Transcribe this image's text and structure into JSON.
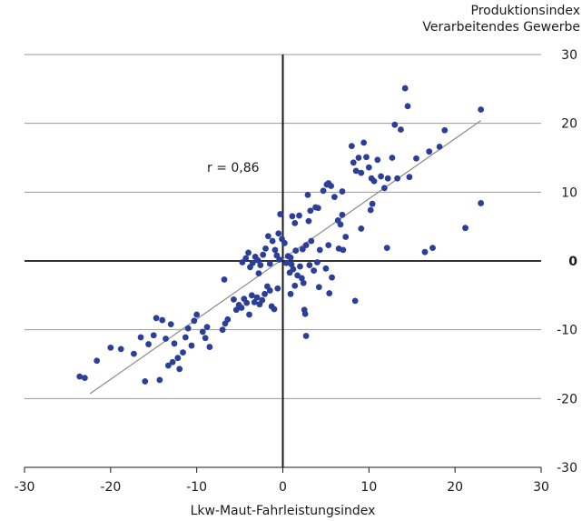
{
  "chart_data": {
    "type": "scatter",
    "title": "",
    "xlabel": "Lkw-Maut-Fahrleistungsindex",
    "ylabel_lines": [
      "Produktionsindex",
      "Verarbeitendes Gewerbe"
    ],
    "xlim": [
      -30,
      30
    ],
    "ylim": [
      -30,
      30
    ],
    "x_ticks": [
      -30,
      -20,
      -10,
      0,
      10,
      20,
      30
    ],
    "y_ticks": [
      -30,
      -20,
      -10,
      0,
      10,
      20,
      30
    ],
    "y_ticks_bold": [
      0
    ],
    "grid": "horizontal",
    "annotation": "r = 0,86",
    "point_color": "#2b3f99",
    "trend_color": "#8c8c8c",
    "trendline": [
      [
        -22.4,
        -19.3
      ],
      [
        23,
        20.4
      ]
    ],
    "series": [
      {
        "points": [
          [
            -23.6,
            -16.8
          ],
          [
            -23.0,
            -17.0
          ],
          [
            -21.6,
            -14.5
          ],
          [
            -20.0,
            -12.6
          ],
          [
            -18.8,
            -12.8
          ],
          [
            -17.3,
            -13.5
          ],
          [
            -16.5,
            -11.1
          ],
          [
            -16.0,
            -17.5
          ],
          [
            -15.6,
            -12.1
          ],
          [
            -15.0,
            -10.8
          ],
          [
            -14.7,
            -8.3
          ],
          [
            -14.3,
            -17.3
          ],
          [
            -14.0,
            -8.6
          ],
          [
            -13.6,
            -11.3
          ],
          [
            -13.3,
            -15.2
          ],
          [
            -13.0,
            -9.2
          ],
          [
            -12.8,
            -14.7
          ],
          [
            -12.6,
            -12.0
          ],
          [
            -12.2,
            -14.1
          ],
          [
            -12.0,
            -15.7
          ],
          [
            -11.6,
            -13.3
          ],
          [
            -11.3,
            -11.1
          ],
          [
            -11.0,
            -9.8
          ],
          [
            -10.6,
            -12.3
          ],
          [
            -10.3,
            -8.7
          ],
          [
            -10.0,
            -7.8
          ],
          [
            -9.3,
            -10.3
          ],
          [
            -9.0,
            -11.2
          ],
          [
            -8.8,
            -9.6
          ],
          [
            -8.5,
            -12.5
          ],
          [
            -7.0,
            -10.0
          ],
          [
            -6.7,
            -9.1
          ],
          [
            -6.4,
            -8.5
          ],
          [
            -6.8,
            -2.7
          ],
          [
            -5.7,
            -5.6
          ],
          [
            -5.4,
            -7.1
          ],
          [
            -5.1,
            -6.4
          ],
          [
            -4.8,
            -6.8
          ],
          [
            -4.5,
            -5.5
          ],
          [
            -4.2,
            -6.1
          ],
          [
            -3.9,
            -7.8
          ],
          [
            -3.6,
            -5.0
          ],
          [
            -3.3,
            -6.0
          ],
          [
            -3.0,
            -5.3
          ],
          [
            -2.7,
            -6.3
          ],
          [
            -2.4,
            -5.7
          ],
          [
            -2.1,
            -4.8
          ],
          [
            -1.8,
            -3.7
          ],
          [
            -1.5,
            -4.3
          ],
          [
            -1.3,
            -6.6
          ],
          [
            -1.0,
            -7.0
          ],
          [
            -0.6,
            -4.0
          ],
          [
            -4.7,
            -0.2
          ],
          [
            -4.3,
            0.4
          ],
          [
            -4.0,
            1.2
          ],
          [
            -3.8,
            -0.9
          ],
          [
            -3.5,
            -0.3
          ],
          [
            -3.2,
            0.6
          ],
          [
            -2.9,
            0.1
          ],
          [
            -2.6,
            -0.6
          ],
          [
            -2.3,
            0.9
          ],
          [
            -2.0,
            1.8
          ],
          [
            -1.7,
            3.6
          ],
          [
            -1.5,
            -0.4
          ],
          [
            -1.2,
            2.9
          ],
          [
            -0.9,
            1.6
          ],
          [
            -0.7,
            0.8
          ],
          [
            -0.5,
            4.0
          ],
          [
            -0.3,
            6.8
          ],
          [
            -0.1,
            3.2
          ],
          [
            0.2,
            2.6
          ],
          [
            0.4,
            -0.3
          ],
          [
            0.6,
            0.7
          ],
          [
            0.8,
            -1.7
          ],
          [
            1.0,
            -0.5
          ],
          [
            1.2,
            -1.2
          ],
          [
            0.9,
            -4.8
          ],
          [
            1.4,
            -3.6
          ],
          [
            1.7,
            -2.1
          ],
          [
            2.0,
            -0.8
          ],
          [
            2.2,
            -2.5
          ],
          [
            2.5,
            -7.1
          ],
          [
            2.7,
            -10.9
          ],
          [
            2.6,
            -7.7
          ],
          [
            3.1,
            -0.6
          ],
          [
            3.6,
            -1.4
          ],
          [
            4.2,
            -3.8
          ],
          [
            5.0,
            -1.1
          ],
          [
            5.4,
            -4.7
          ],
          [
            5.7,
            -2.4
          ],
          [
            1.1,
            6.5
          ],
          [
            1.4,
            5.5
          ],
          [
            1.9,
            6.6
          ],
          [
            2.3,
            1.7
          ],
          [
            2.7,
            2.3
          ],
          [
            2.9,
            9.6
          ],
          [
            3.3,
            2.9
          ],
          [
            3.8,
            7.8
          ],
          [
            4.1,
            7.7
          ],
          [
            4.3,
            1.6
          ],
          [
            4.7,
            10.2
          ],
          [
            5.1,
            11.1
          ],
          [
            5.3,
            11.3
          ],
          [
            5.6,
            10.9
          ],
          [
            6.0,
            9.3
          ],
          [
            6.4,
            5.9
          ],
          [
            6.7,
            5.3
          ],
          [
            7.0,
            1.6
          ],
          [
            7.3,
            3.5
          ],
          [
            8.0,
            16.7
          ],
          [
            8.2,
            14.3
          ],
          [
            8.5,
            13.1
          ],
          [
            8.8,
            15.0
          ],
          [
            9.1,
            12.8
          ],
          [
            9.4,
            17.2
          ],
          [
            9.7,
            15.1
          ],
          [
            10.0,
            13.6
          ],
          [
            10.3,
            12.0
          ],
          [
            10.6,
            11.6
          ],
          [
            11.0,
            14.7
          ],
          [
            11.4,
            12.3
          ],
          [
            11.8,
            10.6
          ],
          [
            12.2,
            12.0
          ],
          [
            12.7,
            15.0
          ],
          [
            13.0,
            19.8
          ],
          [
            13.3,
            12.0
          ],
          [
            13.7,
            19.1
          ],
          [
            14.2,
            25.1
          ],
          [
            14.5,
            22.5
          ],
          [
            14.7,
            12.2
          ],
          [
            15.5,
            14.9
          ],
          [
            16.5,
            1.3
          ],
          [
            17.0,
            15.9
          ],
          [
            17.4,
            1.9
          ],
          [
            18.2,
            16.6
          ],
          [
            18.8,
            19.0
          ],
          [
            21.2,
            4.8
          ],
          [
            23.0,
            22.0
          ],
          [
            23.0,
            8.4
          ],
          [
            3.0,
            5.8
          ],
          [
            3.2,
            7.3
          ],
          [
            6.5,
            1.8
          ],
          [
            6.9,
            6.7
          ],
          [
            9.1,
            4.7
          ],
          [
            10.2,
            7.4
          ],
          [
            10.4,
            8.3
          ],
          [
            12.1,
            1.9
          ],
          [
            8.4,
            -5.8
          ],
          [
            4.0,
            -0.2
          ],
          [
            2.4,
            -3.2
          ],
          [
            0.9,
            0.5
          ],
          [
            -0.4,
            0.2
          ],
          [
            -2.8,
            -1.8
          ],
          [
            1.5,
            1.5
          ],
          [
            5.3,
            2.3
          ],
          [
            6.9,
            10.1
          ]
        ]
      }
    ]
  }
}
